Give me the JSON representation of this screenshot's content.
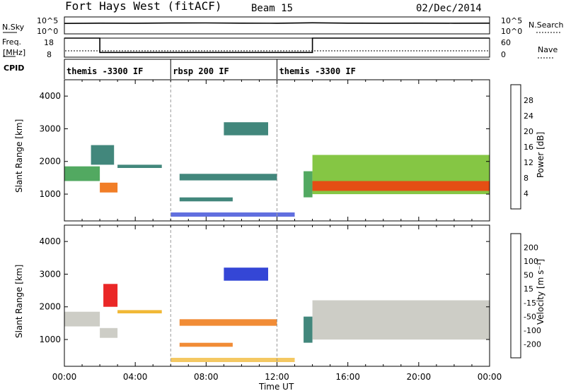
{
  "header": {
    "station": "Fort Hays West (fitACF)",
    "beam": "Beam 15",
    "date": "02/Dec/2014"
  },
  "strip_noise": {
    "left_label": "N.Sky",
    "left_ticks": [
      "10^5",
      "10^0"
    ],
    "right_label": "N.Search",
    "right_ticks": [
      "10^5",
      "10^0"
    ]
  },
  "strip_freq": {
    "left_label_top": "Freq.",
    "left_label_bottom": "[MHz]",
    "left_ticks": [
      "18",
      "8"
    ],
    "right_label": "Nave",
    "right_ticks": [
      "60",
      "0"
    ]
  },
  "strip_cpid": {
    "label": "CPID",
    "segments": [
      {
        "start": 0.0,
        "end": 6.0,
        "label": "themis -3300 IF"
      },
      {
        "start": 6.0,
        "end": 12.0,
        "label": "rbsp 200 IF"
      },
      {
        "start": 12.0,
        "end": 24.0,
        "label": "themis -3300 IF"
      }
    ]
  },
  "axes": {
    "xlabel": "Time UT",
    "ylabel": "Slant Range [km]",
    "x_ticks": [
      "00:00",
      "04:00",
      "08:00",
      "12:00",
      "16:00",
      "20:00",
      "00:00"
    ],
    "y_ticks": [
      "1000",
      "2000",
      "3000",
      "4000"
    ]
  },
  "colorbars": {
    "power": {
      "label": "Power [dB]",
      "ticks": [
        "4",
        "8",
        "12",
        "16",
        "20",
        "24",
        "28"
      ],
      "colors": [
        "#1e32d2",
        "#1e58c8",
        "#2e7a6e",
        "#3fa050",
        "#78c030",
        "#f0c020",
        "#f09020",
        "#f07010",
        "#f04010",
        "#e81010"
      ]
    },
    "velocity": {
      "label": "Velocity [m s⁻¹]",
      "ticks": [
        "200",
        "100",
        "50",
        "15",
        "-15",
        "-50",
        "-100",
        "-200"
      ],
      "colors": [
        "#1e32d2",
        "#1e58c8",
        "#2e7a6e",
        "#3fa050",
        "#78c030",
        "#c8c8c0",
        "#f0b020",
        "#f08020",
        "#f05010",
        "#e81010"
      ]
    }
  },
  "chart_data": [
    {
      "type": "line",
      "title": "Fort Hays West (fitACF)",
      "series": [
        {
          "name": "N.Sky",
          "x": [
            0,
            2,
            4,
            6,
            8,
            10,
            12,
            14,
            16,
            18,
            20,
            22,
            24
          ],
          "y": [
            1200,
            1500,
            1400,
            1600,
            1700,
            1500,
            1400,
            1900,
            1500,
            1400,
            1500,
            1400,
            1500
          ]
        },
        {
          "name": "N.Search",
          "x": [
            0,
            2,
            4,
            6,
            8,
            10,
            12,
            14,
            16,
            18,
            20,
            22,
            24
          ],
          "y": [
            1100,
            1300,
            1300,
            1500,
            1600,
            1400,
            1300,
            1700,
            1400,
            1300,
            1400,
            1300,
            1400
          ]
        }
      ],
      "xlim": [
        0,
        24
      ],
      "ylim": [
        1,
        100000
      ]
    },
    {
      "type": "line",
      "series": [
        {
          "name": "Freq.",
          "x": [
            0,
            2,
            2,
            14,
            14,
            24
          ],
          "y": [
            18,
            18,
            10.5,
            10.5,
            18,
            18
          ]
        },
        {
          "name": "Nave",
          "x": [
            0,
            24
          ],
          "y": [
            16,
            16
          ]
        }
      ],
      "xlim": [
        0,
        24
      ],
      "ylim": [
        8,
        18
      ]
    },
    {
      "type": "heatmap",
      "ylabel": "Slant Range [km]",
      "xlabel": "Time UT",
      "colorbar": "Power [dB]",
      "ylim": [
        180,
        4500
      ],
      "xlim": [
        0,
        24
      ],
      "regions": [
        {
          "t0": 0.0,
          "t1": 2.0,
          "r0": 1400,
          "r1": 1850,
          "level": 10
        },
        {
          "t0": 2.0,
          "t1": 3.0,
          "r0": 1050,
          "r1": 1350,
          "level": 22
        },
        {
          "t0": 1.5,
          "t1": 2.8,
          "r0": 1900,
          "r1": 2500,
          "level": 8
        },
        {
          "t0": 3.0,
          "t1": 5.5,
          "r0": 1800,
          "r1": 1900,
          "level": 6
        },
        {
          "t0": 6.5,
          "t1": 12.0,
          "r0": 1420,
          "r1": 1620,
          "level": 7
        },
        {
          "t0": 6.5,
          "t1": 9.5,
          "r0": 780,
          "r1": 900,
          "level": 6
        },
        {
          "t0": 9.0,
          "t1": 11.5,
          "r0": 2800,
          "r1": 3200,
          "level": 6
        },
        {
          "t0": 13.5,
          "t1": 14.0,
          "r0": 900,
          "r1": 1700,
          "level": 10
        },
        {
          "t0": 14.0,
          "t1": 24.0,
          "r0": 1000,
          "r1": 2200,
          "level": 12
        },
        {
          "t0": 14.0,
          "t1": 24.0,
          "r0": 1100,
          "r1": 1400,
          "level": 24
        }
      ]
    },
    {
      "type": "heatmap",
      "ylabel": "Slant Range [km]",
      "xlabel": "Time UT",
      "colorbar": "Velocity [m s⁻¹]",
      "ylim": [
        180,
        4500
      ],
      "xlim": [
        0,
        24
      ],
      "regions": [
        {
          "t0": 0.0,
          "t1": 2.0,
          "r0": 1400,
          "r1": 1850,
          "level": 0
        },
        {
          "t0": 2.0,
          "t1": 3.0,
          "r0": 1050,
          "r1": 1350,
          "level": 0
        },
        {
          "t0": 2.2,
          "t1": 3.0,
          "r0": 2000,
          "r1": 2700,
          "level": -180
        },
        {
          "t0": 3.0,
          "t1": 5.5,
          "r0": 1800,
          "r1": 1900,
          "level": -20
        },
        {
          "t0": 6.5,
          "t1": 12.0,
          "r0": 1420,
          "r1": 1620,
          "level": -60
        },
        {
          "t0": 6.5,
          "t1": 9.5,
          "r0": 780,
          "r1": 900,
          "level": -70
        },
        {
          "t0": 9.0,
          "t1": 11.5,
          "r0": 2800,
          "r1": 3200,
          "level": 200
        },
        {
          "t0": 13.5,
          "t1": 14.0,
          "r0": 900,
          "r1": 1700,
          "level": 30
        },
        {
          "t0": 14.0,
          "t1": 24.0,
          "r0": 1000,
          "r1": 2200,
          "level": 0
        }
      ]
    }
  ]
}
